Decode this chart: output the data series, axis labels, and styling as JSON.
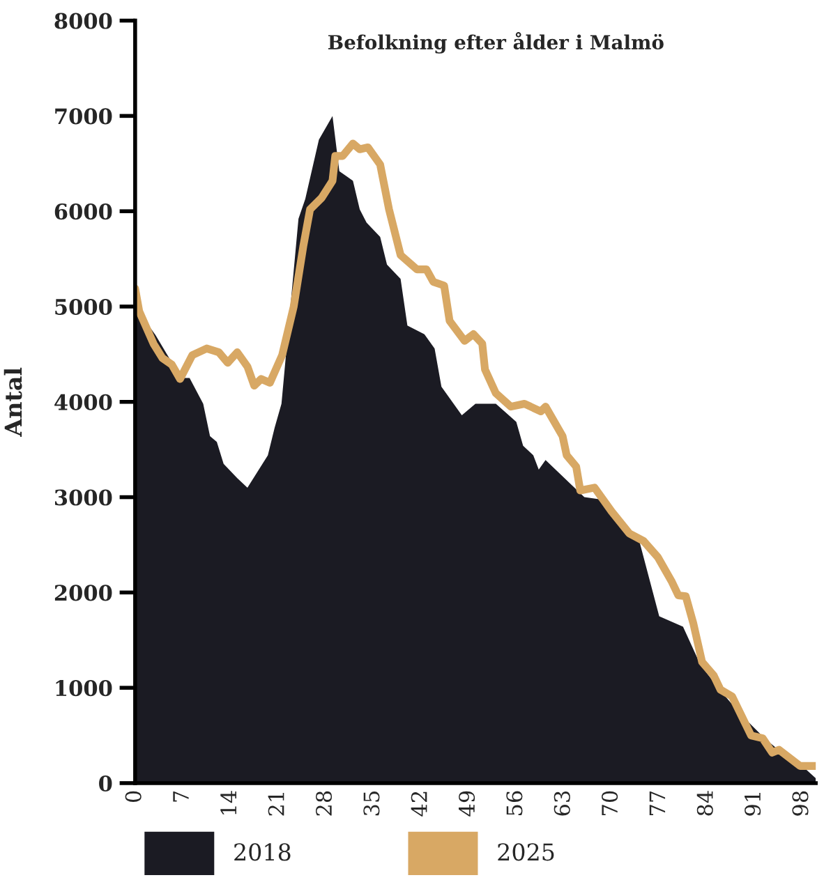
{
  "chart_data": {
    "type": "area",
    "title": "Befolkning efter ålder i Malmö",
    "ylabel": "Antal",
    "xlim": [
      0,
      100
    ],
    "xticks": [
      0,
      7,
      14,
      21,
      28,
      35,
      42,
      49,
      56,
      63,
      70,
      77,
      84,
      91,
      98
    ],
    "ylim": [
      0,
      8000
    ],
    "yticks": [
      0,
      1000,
      2000,
      3000,
      4000,
      5000,
      6000,
      7000,
      8000
    ],
    "grid": false,
    "legend": "bottom left",
    "series": [
      {
        "name": "2018",
        "color": "#1b1b23",
        "x": [
          0,
          3,
          5,
          7,
          8,
          10,
          11,
          12,
          13,
          15,
          16.5,
          18,
          19.5,
          20.5,
          21.5,
          24,
          25,
          27,
          29,
          30,
          32,
          33,
          34,
          36,
          37,
          39,
          40,
          42.5,
          44,
          45,
          48,
          50,
          53,
          56,
          57,
          58.5,
          59.3,
          60.3,
          66,
          68,
          74,
          77,
          80.5,
          83,
          85.5,
          89,
          92.5,
          95,
          98,
          100
        ],
        "values": [
          5000,
          4700,
          4460,
          4250,
          4250,
          3980,
          3640,
          3580,
          3350,
          3200,
          3100,
          3270,
          3440,
          3730,
          3980,
          5920,
          6130,
          6750,
          7000,
          6420,
          6320,
          6020,
          5880,
          5730,
          5440,
          5290,
          4800,
          4710,
          4560,
          4160,
          3860,
          3980,
          3980,
          3790,
          3540,
          3440,
          3290,
          3390,
          3000,
          2980,
          2560,
          1750,
          1640,
          1250,
          1010,
          720,
          470,
          320,
          180,
          50
        ]
      },
      {
        "name": "2025",
        "type": "line",
        "color": "#d8a864",
        "x": [
          0,
          0.6,
          2.7,
          4,
          5.4,
          6.6,
          8.4,
          10.5,
          12.3,
          13.6,
          15,
          16.5,
          17.5,
          18.5,
          19.8,
          21.6,
          23.3,
          24.7,
          25.7,
          27.4,
          29,
          29.4,
          30.5,
          32,
          33,
          34.2,
          36,
          37.3,
          39,
          41.4,
          42.8,
          43.8,
          45.4,
          46.2,
          48.4,
          49.7,
          51,
          51.4,
          53,
          55.2,
          57.2,
          59.6,
          60.3,
          62.8,
          63.4,
          64.8,
          65.4,
          67.5,
          70,
          72.6,
          74.7,
          76.8,
          78.8,
          79.8,
          80.9,
          82,
          83.3,
          85,
          86,
          87.7,
          89,
          90.5,
          92.2,
          93.6,
          94.6,
          97.7,
          100
        ],
        "values": [
          5190,
          4950,
          4610,
          4460,
          4390,
          4240,
          4490,
          4560,
          4520,
          4410,
          4520,
          4370,
          4170,
          4240,
          4200,
          4490,
          5000,
          5630,
          6020,
          6140,
          6320,
          6580,
          6580,
          6710,
          6650,
          6670,
          6490,
          6020,
          5540,
          5390,
          5390,
          5260,
          5220,
          4850,
          4640,
          4710,
          4610,
          4340,
          4090,
          3950,
          3980,
          3900,
          3950,
          3640,
          3440,
          3320,
          3070,
          3100,
          2850,
          2620,
          2540,
          2370,
          2120,
          1970,
          1960,
          1680,
          1270,
          1130,
          980,
          910,
          720,
          500,
          470,
          320,
          350,
          180,
          180
        ]
      }
    ]
  }
}
